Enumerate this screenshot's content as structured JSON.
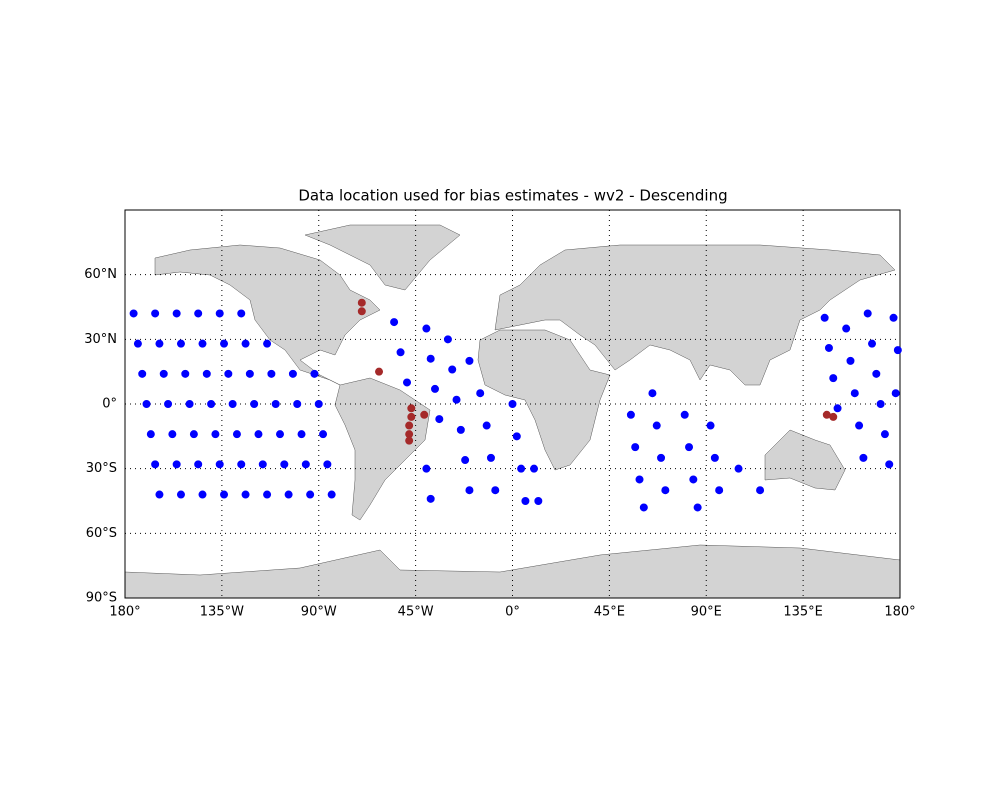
{
  "chart_data": {
    "type": "scatter",
    "title": "Data location used for bias estimates - wv2 - Descending",
    "xlim": [
      -180,
      180
    ],
    "ylim": [
      -90,
      90
    ],
    "xticks": [
      {
        "value": -180,
        "label": "180°"
      },
      {
        "value": -135,
        "label": "135°W"
      },
      {
        "value": -90,
        "label": "90°W"
      },
      {
        "value": -45,
        "label": "45°W"
      },
      {
        "value": 0,
        "label": "0°"
      },
      {
        "value": 45,
        "label": "45°E"
      },
      {
        "value": 90,
        "label": "90°E"
      },
      {
        "value": 135,
        "label": "135°E"
      },
      {
        "value": 180,
        "label": "180°"
      }
    ],
    "yticks": [
      {
        "value": 60,
        "label": "60°N"
      },
      {
        "value": 30,
        "label": "30°N"
      },
      {
        "value": 0,
        "label": "0°"
      },
      {
        "value": -30,
        "label": "30°S"
      },
      {
        "value": -60,
        "label": "60°S"
      },
      {
        "value": -90,
        "label": "90°S"
      }
    ],
    "grid": true,
    "series": [
      {
        "color": "#0000ff",
        "x": [
          -176,
          -174,
          -172,
          -170,
          -168,
          -166,
          -164,
          -166,
          -164,
          -162,
          -160,
          -158,
          -156,
          -154,
          -156,
          -154,
          -152,
          -150,
          -148,
          -146,
          -144,
          -146,
          -144,
          -142,
          -140,
          -138,
          -136,
          -134,
          -136,
          -134,
          -132,
          -130,
          -128,
          -126,
          -124,
          -126,
          -124,
          -122,
          -120,
          -118,
          -116,
          -114,
          -114,
          -112,
          -110,
          -108,
          -106,
          -104,
          -102,
          -100,
          -98,
          -96,
          -94,
          -92,
          -90,
          -88,
          -86,
          -84,
          -55,
          -52,
          -49,
          -40,
          -38,
          -36,
          -34,
          -30,
          -28,
          -26,
          -24,
          -22,
          -20,
          -20,
          -15,
          -12,
          -10,
          -8,
          0,
          2,
          4,
          6,
          -40,
          -38,
          10,
          12,
          55,
          57,
          59,
          61,
          65,
          67,
          69,
          71,
          80,
          82,
          84,
          86,
          92,
          94,
          96,
          105,
          115,
          145,
          147,
          149,
          151,
          155,
          157,
          159,
          161,
          163,
          165,
          167,
          169,
          171,
          173,
          175,
          177,
          179,
          178
        ],
        "y": [
          42,
          28,
          14,
          0,
          -14,
          -28,
          -42,
          42,
          28,
          14,
          0,
          -14,
          -28,
          -42,
          42,
          28,
          14,
          0,
          -14,
          -28,
          -42,
          42,
          28,
          14,
          0,
          -14,
          -28,
          -42,
          42,
          28,
          14,
          0,
          -14,
          -28,
          -42,
          42,
          28,
          14,
          0,
          -14,
          -28,
          -42,
          28,
          14,
          0,
          -14,
          -28,
          -42,
          14,
          0,
          -14,
          -28,
          -42,
          14,
          0,
          -14,
          -28,
          -42,
          38,
          24,
          10,
          35,
          21,
          7,
          -7,
          30,
          16,
          2,
          -12,
          -26,
          -40,
          20,
          5,
          -10,
          -25,
          -40,
          0,
          -15,
          -30,
          -45,
          -30,
          -44,
          -30,
          -45,
          -5,
          -20,
          -35,
          -48,
          5,
          -10,
          -25,
          -40,
          -5,
          -20,
          -35,
          -48,
          -10,
          -25,
          -40,
          -30,
          -40,
          40,
          26,
          12,
          -2,
          35,
          20,
          5,
          -10,
          -25,
          42,
          28,
          14,
          0,
          -14,
          -28,
          40,
          25,
          5
        ]
      },
      {
        "color": "#a52a2a",
        "x": [
          -70,
          -70,
          -62,
          -47,
          -47,
          -48,
          -48,
          -48,
          -41,
          146,
          149
        ],
        "y": [
          47,
          43,
          15,
          -2,
          -6,
          -10,
          -14,
          -17,
          -5,
          -5,
          -6
        ]
      }
    ]
  }
}
